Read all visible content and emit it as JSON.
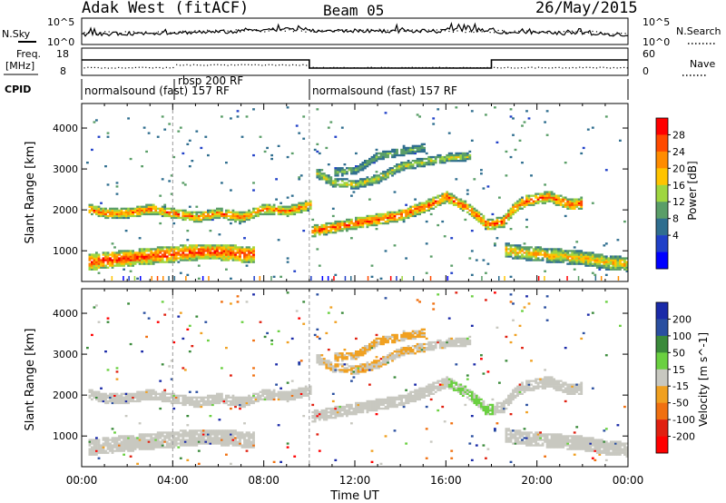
{
  "header": {
    "station": "Adak West (fitACF)",
    "beam": "Beam 05",
    "date": "26/May/2015"
  },
  "noise_panel": {
    "left_label": "N.Sky",
    "left_ticks": [
      "10^5",
      "10^0"
    ],
    "right_ticks": [
      "10^5",
      "10^0"
    ],
    "right_label": "N.Search"
  },
  "freq_panel": {
    "left_label_1": "Freq.",
    "left_label_2": "[MHz]",
    "left_ticks": [
      "18",
      "8"
    ],
    "right_ticks": [
      "60",
      "0"
    ],
    "right_label": "Nave"
  },
  "cpid_panel": {
    "label": "CPID",
    "segments": [
      {
        "name": "normalsound (fast) 157 RF",
        "start_h": 0,
        "end_h": 10
      },
      {
        "name": "rbsp 200 RF",
        "start_h": 4,
        "end_h": 10
      },
      {
        "name": "normalsound (fast) 157 RF",
        "start_h": 10,
        "end_h": 24
      }
    ]
  },
  "axes": {
    "ylabel": "Slant Range [km]",
    "xlabel": "Time UT",
    "yticks": [
      "1000",
      "2000",
      "3000",
      "4000"
    ],
    "xticks": [
      "00:00",
      "04:00",
      "08:00",
      "12:00",
      "16:00",
      "20:00",
      "00:00"
    ]
  },
  "power_scale": {
    "label": "Power [dB]",
    "ticks": [
      "28",
      "24",
      "20",
      "16",
      "12",
      "8",
      "4"
    ],
    "colors": [
      "#ff0000",
      "#ff4a00",
      "#ff8c00",
      "#ffc400",
      "#9fd640",
      "#5a9e68",
      "#2f6e8f",
      "#2040c8",
      "#0000ff"
    ]
  },
  "velocity_scale": {
    "label": "Velocity [m s^-1]",
    "ticks": [
      "200",
      "100",
      "50",
      "15",
      "-15",
      "-50",
      "-100",
      "-200"
    ],
    "colors": [
      "#1a2aa8",
      "#2a4fa0",
      "#3a8a3a",
      "#6ad040",
      "#c8c8c0",
      "#f0a020",
      "#f07010",
      "#e02010",
      "#ff0000"
    ]
  },
  "chart_data": {
    "type": "heatmap",
    "x_unit": "hours UT",
    "xlim": [
      0,
      24
    ],
    "ylim": [
      250,
      4600
    ],
    "power_bands": [
      {
        "name": "near",
        "points": [
          [
            0.3,
            700
          ],
          [
            1,
            750
          ],
          [
            2,
            800
          ],
          [
            3,
            850
          ],
          [
            4,
            900
          ],
          [
            5,
            950
          ],
          [
            6,
            950
          ],
          [
            7,
            900
          ],
          [
            7.5,
            900
          ]
        ],
        "width": 400,
        "peak_db": 28
      },
      {
        "name": "lower E",
        "points": [
          [
            0.3,
            2000
          ],
          [
            1,
            1900
          ],
          [
            2,
            1900
          ],
          [
            3,
            2000
          ],
          [
            4,
            1900
          ],
          [
            5,
            1800
          ],
          [
            6,
            1900
          ],
          [
            7,
            1800
          ],
          [
            8,
            2000
          ],
          [
            9,
            1950
          ],
          [
            10,
            2100
          ]
        ],
        "width": 250,
        "peak_db": 24
      },
      {
        "name": "mid",
        "points": [
          [
            10,
            1450
          ],
          [
            11,
            1550
          ],
          [
            12,
            1650
          ],
          [
            13,
            1750
          ],
          [
            14,
            1850
          ],
          [
            15,
            2050
          ],
          [
            16,
            2300
          ],
          [
            17,
            2000
          ],
          [
            17.8,
            1600
          ],
          [
            18.5,
            1700
          ],
          [
            19,
            2050
          ],
          [
            19.5,
            2200
          ],
          [
            20.5,
            2300
          ],
          [
            21.5,
            2100
          ],
          [
            22,
            2150
          ]
        ],
        "width": 280,
        "peak_db": 26
      },
      {
        "name": "high",
        "points": [
          [
            10.2,
            2900
          ],
          [
            11,
            2650
          ],
          [
            12,
            2600
          ],
          [
            13,
            2750
          ],
          [
            14,
            3050
          ],
          [
            15,
            3150
          ],
          [
            16,
            3250
          ],
          [
            17,
            3300
          ]
        ],
        "width": 220,
        "peak_db": 16
      },
      {
        "name": "upper",
        "points": [
          [
            11,
            2900
          ],
          [
            12,
            2950
          ],
          [
            13,
            3300
          ],
          [
            14,
            3400
          ],
          [
            15,
            3500
          ]
        ],
        "width": 200,
        "peak_db": 12
      },
      {
        "name": "late near",
        "points": [
          [
            18.5,
            1000
          ],
          [
            19,
            950
          ],
          [
            20,
            900
          ],
          [
            21,
            850
          ],
          [
            22,
            800
          ],
          [
            23,
            700
          ],
          [
            24,
            650
          ]
        ],
        "width": 350,
        "peak_db": 20
      }
    ],
    "velocity_note": "Velocity panel shows the same echo regions mostly near 0 m/s (grey), with positive (green) near 16-18 UT and negative (orange) streaks near 11-15 UT."
  }
}
